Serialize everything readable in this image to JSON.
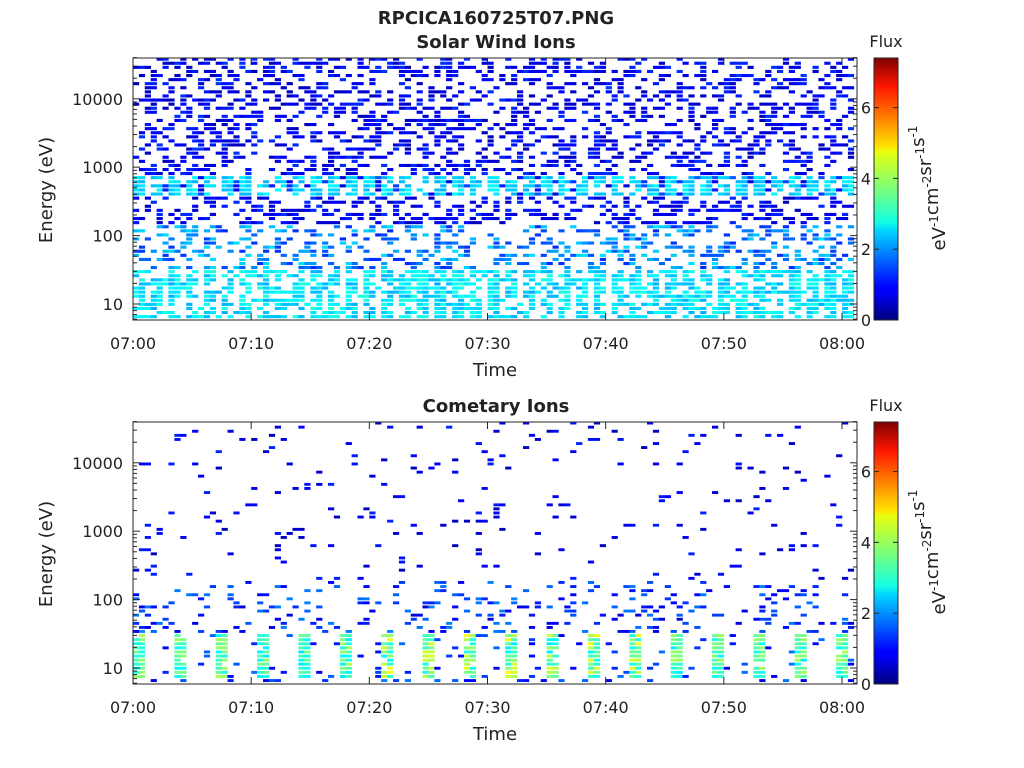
{
  "figure_title": "RPCICA160725T07.PNG",
  "chart_data": [
    {
      "type": "heatmap",
      "title": "Solar Wind Ions",
      "xlabel": "Time",
      "ylabel": "Energy (eV)",
      "x_ticks": [
        "07:00",
        "07:10",
        "07:20",
        "07:30",
        "07:40",
        "07:50",
        "08:00"
      ],
      "y_ticks": [
        "10",
        "100",
        "1000",
        "10000"
      ],
      "y_scale": "log",
      "ylim": [
        6,
        40000
      ],
      "xlim": [
        "07:00",
        "08:01"
      ],
      "colorbar": {
        "title": "Flux",
        "label": "eV-1cm-2sr-1s-1",
        "ticks": [
          "0",
          "2",
          "4",
          "6"
        ],
        "range": [
          0,
          7.4
        ],
        "colormap": "jet"
      },
      "description": "Random sparse flux, mostly low (dark blue, ~0.5-1) at energies above ~100 eV; enhanced (cyan, ~2-3) at 300-700 eV and below 30 eV at 1.5-min cadence.",
      "rows_energy_eV": [
        7,
        9,
        11,
        13,
        16,
        20,
        25,
        30,
        40,
        60,
        80,
        120,
        200,
        300,
        500,
        700,
        1000,
        2000,
        4000,
        8000,
        16000,
        30000
      ],
      "typical_flux_by_band": [
        {
          "energy_range_eV": [
            6,
            30
          ],
          "flux": 2.5
        },
        {
          "energy_range_eV": [
            30,
            150
          ],
          "flux": 1.5
        },
        {
          "energy_range_eV": [
            300,
            700
          ],
          "flux": 2.3
        },
        {
          "energy_range_eV": [
            150,
            40000
          ],
          "flux": 0.6
        }
      ]
    },
    {
      "type": "heatmap",
      "title": "Cometary Ions",
      "xlabel": "Time",
      "ylabel": "Energy (eV)",
      "x_ticks": [
        "07:00",
        "07:10",
        "07:20",
        "07:30",
        "07:40",
        "07:50",
        "08:00"
      ],
      "y_ticks": [
        "10",
        "100",
        "1000",
        "10000"
      ],
      "y_scale": "log",
      "ylim": [
        6,
        40000
      ],
      "xlim": [
        "07:00",
        "08:01"
      ],
      "colorbar": {
        "title": "Flux",
        "label": "eV-1cm-2sr-1s-1",
        "ticks": [
          "0",
          "2",
          "4",
          "6"
        ],
        "range": [
          0,
          7.4
        ],
        "colormap": "jet"
      },
      "description": "Sparse low flux above ~30 eV; periodic bursts (~3 min) of strong flux (green-yellow, 3-5) at 10-30 eV, increasing toward 07:30-07:40.",
      "typical_flux_by_band": [
        {
          "energy_range_eV": [
            7,
            30
          ],
          "flux": 3.5
        },
        {
          "energy_range_eV": [
            30,
            200
          ],
          "flux": 1.0
        },
        {
          "energy_range_eV": [
            200,
            40000
          ],
          "flux": 0.5
        }
      ]
    }
  ]
}
